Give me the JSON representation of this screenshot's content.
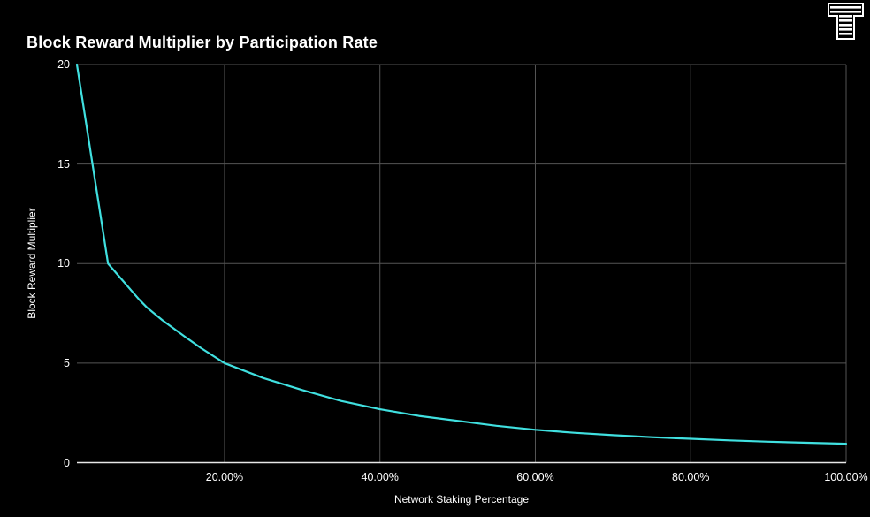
{
  "page": {
    "background_color": "#000000",
    "text_color": "#ffffff",
    "gridline_color": "#555555",
    "axis_line_color": "#e8e8e8"
  },
  "header": {
    "title": "Block Reward Multiplier by Participation Rate",
    "logo_icon": "token-terminal-striped-t-logo"
  },
  "chart_data": {
    "type": "line",
    "title": "Block Reward Multiplier by Participation Rate",
    "xlabel": "Network Staking Percentage",
    "ylabel": "Block Reward Multiplier",
    "xlim": [
      1,
      100
    ],
    "ylim": [
      0,
      20
    ],
    "grid": true,
    "legend": false,
    "line_color": "#40E0E0",
    "x_ticks": [
      {
        "value": 20,
        "label": "20.00%"
      },
      {
        "value": 40,
        "label": "40.00%"
      },
      {
        "value": 60,
        "label": "60.00%"
      },
      {
        "value": 80,
        "label": "80.00%"
      },
      {
        "value": 100,
        "label": "100.00%"
      }
    ],
    "y_ticks": [
      {
        "value": 0,
        "label": "0"
      },
      {
        "value": 5,
        "label": "5"
      },
      {
        "value": 10,
        "label": "10"
      },
      {
        "value": 15,
        "label": "15"
      },
      {
        "value": 20,
        "label": "20"
      }
    ],
    "series": [
      {
        "name": "Block Reward Multiplier",
        "points": [
          [
            1,
            20
          ],
          [
            2,
            17.5
          ],
          [
            3,
            15
          ],
          [
            4,
            12.5
          ],
          [
            5,
            10
          ],
          [
            6,
            9.55
          ],
          [
            7,
            9.1
          ],
          [
            8,
            8.65
          ],
          [
            9,
            8.2
          ],
          [
            10,
            7.8
          ],
          [
            12,
            7.15
          ],
          [
            15,
            6.3
          ],
          [
            17,
            5.75
          ],
          [
            20,
            5.0
          ],
          [
            25,
            4.25
          ],
          [
            30,
            3.65
          ],
          [
            35,
            3.1
          ],
          [
            40,
            2.68
          ],
          [
            45,
            2.35
          ],
          [
            50,
            2.1
          ],
          [
            55,
            1.85
          ],
          [
            60,
            1.65
          ],
          [
            65,
            1.5
          ],
          [
            70,
            1.38
          ],
          [
            75,
            1.28
          ],
          [
            80,
            1.2
          ],
          [
            85,
            1.12
          ],
          [
            90,
            1.05
          ],
          [
            95,
            1.0
          ],
          [
            100,
            0.95
          ]
        ]
      }
    ]
  }
}
